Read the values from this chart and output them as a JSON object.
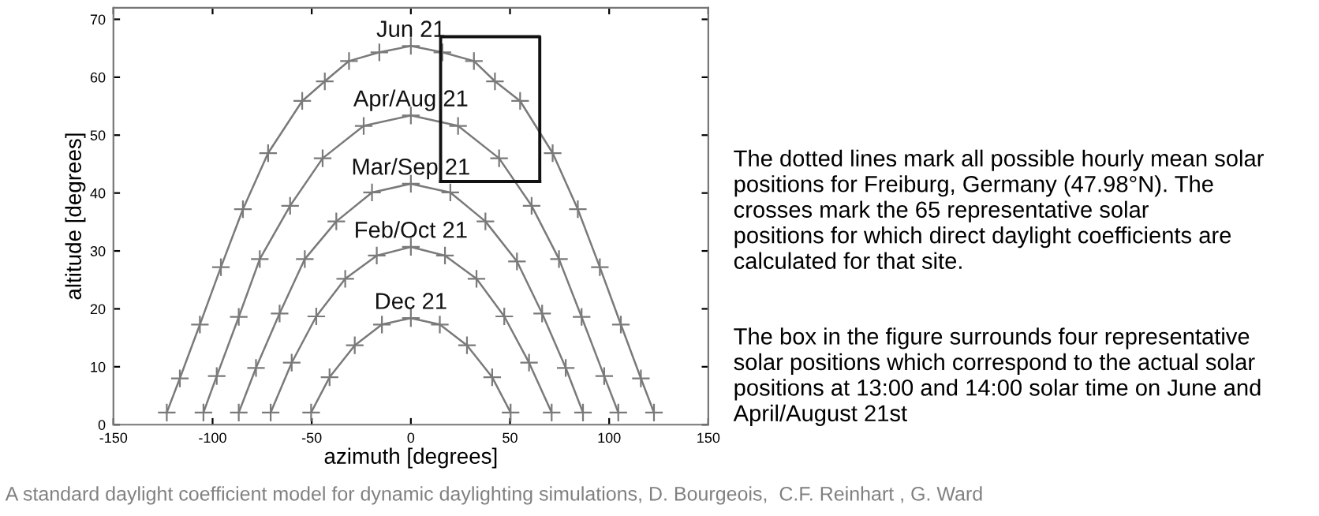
{
  "chart_data": {
    "type": "line",
    "xlabel": "azimuth [degrees]",
    "ylabel": "altitude [degrees]",
    "xlim": [
      -150,
      150
    ],
    "xticks": [
      -150,
      -100,
      -50,
      0,
      50,
      100,
      150
    ],
    "ylim": [
      0,
      72
    ],
    "yticks": [
      0,
      10,
      20,
      30,
      40,
      50,
      60,
      70
    ],
    "grid": false,
    "legend": false,
    "marker": "cross",
    "line_style": "solid",
    "series": [
      {
        "name": "Jun 21",
        "color": "#7a7a7a",
        "x": [
          -123.1,
          -116.5,
          -106.4,
          -95.8,
          -84.7,
          -72.0,
          -54.8,
          -43.4,
          -31.2,
          -15.9,
          0,
          15.9,
          31.8,
          42.4,
          55.1,
          71.5,
          84.2,
          95.3,
          105.9,
          116.0,
          122.6
        ],
        "values": [
          2.1,
          8.0,
          17.3,
          27.2,
          37.2,
          46.9,
          55.9,
          59.3,
          62.8,
          64.3,
          65.4,
          64.3,
          62.8,
          59.3,
          55.9,
          46.9,
          37.2,
          27.2,
          17.3,
          8.0,
          2.1
        ]
      },
      {
        "name": "Apr/Aug 21",
        "color": "#7a7a7a",
        "x": [
          -104.6,
          -97.9,
          -86.8,
          -76.2,
          -60.9,
          -44.5,
          -23.8,
          0,
          23.8,
          44.5,
          60.9,
          74.7,
          86.1,
          97.5,
          104.6
        ],
        "values": [
          2.1,
          8.4,
          18.6,
          28.6,
          37.8,
          46.0,
          51.6,
          53.4,
          51.6,
          46.0,
          37.8,
          28.6,
          18.6,
          8.4,
          2.1
        ]
      },
      {
        "name": "Mar/Sep 21",
        "color": "#7a7a7a",
        "x": [
          -86.8,
          -78.1,
          -66.2,
          -53.5,
          -37.6,
          -19.6,
          0,
          19.9,
          37.6,
          53.5,
          66.2,
          78.1,
          86.8
        ],
        "values": [
          2.1,
          9.8,
          19.2,
          28.6,
          35.1,
          40.1,
          41.6,
          40.1,
          35.1,
          28.2,
          19.2,
          9.8,
          2.1
        ]
      },
      {
        "name": "Feb/Oct 21",
        "color": "#7a7a7a",
        "x": [
          -70.7,
          -60.1,
          -47.7,
          -33.1,
          -17.2,
          0,
          17.2,
          33.1,
          47.1,
          59.6,
          71.0
        ],
        "values": [
          2.1,
          10.7,
          18.7,
          25.2,
          29.2,
          30.7,
          29.2,
          25.2,
          18.7,
          10.7,
          2.1
        ]
      },
      {
        "name": "Dec 21",
        "color": "#7a7a7a",
        "x": [
          -50.3,
          -41.0,
          -28.3,
          -14.6,
          0,
          14.6,
          28.3,
          41.0,
          50.3
        ],
        "values": [
          2.1,
          8.2,
          13.7,
          17.3,
          18.4,
          17.3,
          13.7,
          8.2,
          2.1
        ]
      },
      {
        "color": "#111111",
        "marker": "none",
        "x": [
          15,
          15,
          65,
          65
        ],
        "values": [
          42,
          67,
          67,
          42
        ]
      },
      {
        "color": "#111111",
        "marker": "none",
        "x": [
          15,
          65
        ],
        "values": [
          42,
          42
        ]
      }
    ],
    "annotations": [
      "The dotted lines mark all possible hourly mean solar\npositions for Freiburg, Germany (47.98°N). The\ncrosses mark the 65 representative solar\npositions for which direct daylight coefficients are\ncalculated for that site.",
      "The box in the figure surrounds four representative\nsolar positions which correspond to the actual solar\npositions at 13:00 and 14:00 solar time on June and\nApril/August 21st",
      "A standard daylight coefficient model for dynamic daylighting simulations, D. Bourgeois,  C.F. Reinhart , G. Ward"
    ]
  }
}
